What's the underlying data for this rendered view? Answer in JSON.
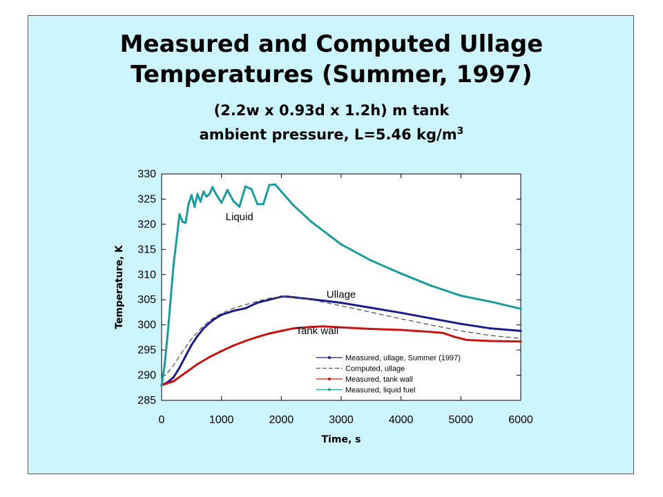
{
  "title_line1": "Measured and Computed Ullage",
  "title_line2": "Temperatures (Summer, 1997)",
  "subtitle_line1": "(2.2w x 0.93d x 1.2h) m tank",
  "subtitle_line2_prefix": "ambient pressure, L=5.46 kg/m",
  "subtitle_line2_sup": "3",
  "chart_data": {
    "type": "line",
    "xlabel": "Time, s",
    "ylabel": "Temperature, K",
    "xlim": [
      0,
      6000
    ],
    "ylim": [
      285,
      330
    ],
    "xticks": [
      0,
      1000,
      2000,
      3000,
      4000,
      5000,
      6000
    ],
    "yticks": [
      285,
      290,
      295,
      300,
      305,
      310,
      315,
      320,
      325,
      330
    ],
    "grid": false,
    "legend_position": "bottom-right",
    "annotations": [
      {
        "text": "Liquid",
        "x": 1300,
        "y": 320.8
      },
      {
        "text": "Ullage",
        "x": 3000,
        "y": 305.4
      },
      {
        "text": "Tank wall",
        "x": 2600,
        "y": 298.2
      }
    ],
    "series": [
      {
        "name": "Measured, ullage, Summer (1997)",
        "color": "#1a1a8c",
        "style": "solid-dots",
        "x": [
          0,
          100,
          200,
          300,
          400,
          500,
          600,
          700,
          800,
          900,
          1000,
          1200,
          1400,
          1600,
          1800,
          2000,
          2100,
          2200,
          2500,
          3000,
          3500,
          4000,
          4500,
          5000,
          5500,
          6000
        ],
        "y": [
          288,
          288.6,
          289.6,
          291.5,
          293.8,
          296,
          297.8,
          299.3,
          300.4,
          301.3,
          302,
          302.8,
          303.3,
          304.4,
          305,
          305.6,
          305.6,
          305.5,
          305.1,
          304.4,
          303.4,
          302.4,
          301.3,
          300.2,
          299.3,
          298.8
        ]
      },
      {
        "name": "Computed, ullage",
        "color": "#555555",
        "style": "dashed",
        "x": [
          0,
          100,
          200,
          300,
          400,
          500,
          600,
          700,
          800,
          900,
          1000,
          1200,
          1400,
          1600,
          1800,
          2000,
          2200,
          2500,
          3000,
          3500,
          4000,
          4500,
          5000,
          5500,
          6000
        ],
        "y": [
          289.5,
          290.5,
          292,
          293.8,
          295.6,
          297.2,
          298.6,
          299.8,
          300.8,
          301.6,
          302.3,
          303.3,
          304,
          304.7,
          305.3,
          305.6,
          305.5,
          305,
          303.8,
          302.5,
          301.2,
          300,
          298.8,
          297.9,
          297.3
        ]
      },
      {
        "name": "Measured, tank wall",
        "color": "#cc1111",
        "style": "solid-dots",
        "x": [
          0,
          200,
          400,
          600,
          800,
          1000,
          1200,
          1400,
          1600,
          1800,
          2000,
          2200,
          2500,
          2700,
          3000,
          3500,
          4000,
          4500,
          4700,
          4900,
          5100,
          5500,
          6000
        ],
        "y": [
          288,
          288.8,
          290.5,
          292.2,
          293.6,
          294.8,
          295.9,
          296.8,
          297.6,
          298.3,
          298.8,
          299.3,
          299.6,
          299.7,
          299.5,
          299.2,
          299,
          298.6,
          298.4,
          297.6,
          297,
          296.8,
          296.7
        ]
      },
      {
        "name": "Measured, liquid fuel",
        "color": "#1a9c9c",
        "style": "solid-dots",
        "x": [
          0,
          50,
          100,
          150,
          200,
          250,
          300,
          350,
          400,
          450,
          500,
          550,
          600,
          650,
          700,
          750,
          800,
          850,
          900,
          950,
          1000,
          1100,
          1200,
          1300,
          1400,
          1500,
          1600,
          1700,
          1800,
          1900,
          2000,
          2200,
          2500,
          3000,
          3500,
          4000,
          4500,
          5000,
          5500,
          6000
        ],
        "y": [
          288,
          292,
          298,
          305,
          312,
          317,
          322,
          320.5,
          320.3,
          324,
          325.8,
          323.5,
          326,
          324.5,
          326.5,
          325.5,
          326,
          327.4,
          326.2,
          325.2,
          324.3,
          326.8,
          324.6,
          323.5,
          327.5,
          327,
          324,
          324,
          327.8,
          327.9,
          326.5,
          323.8,
          320.5,
          316,
          312.8,
          310.2,
          307.8,
          305.8,
          304.6,
          303.2
        ]
      }
    ]
  }
}
